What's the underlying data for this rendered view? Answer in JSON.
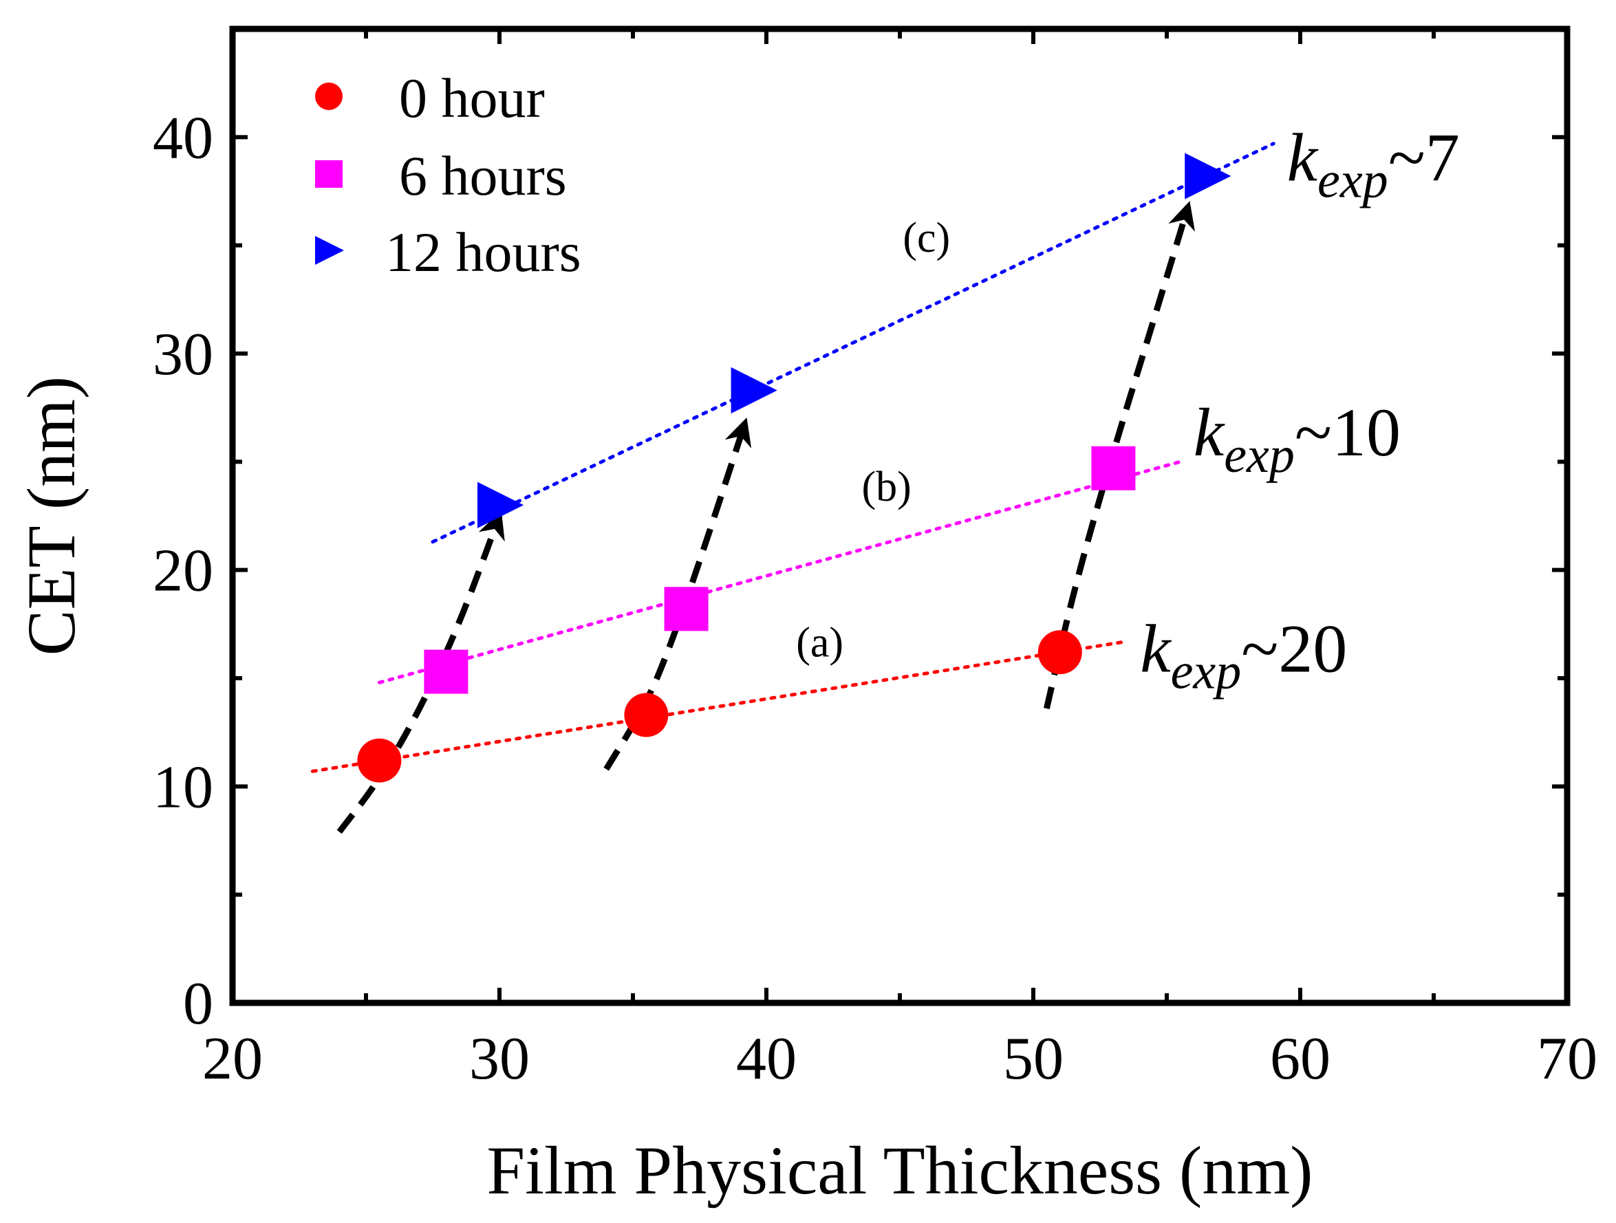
{
  "chart_data": {
    "type": "scatter",
    "xlabel": "Film Physical Thickness (nm)",
    "ylabel": "CET (nm)",
    "xlim": [
      20,
      70
    ],
    "ylim": [
      0,
      45
    ],
    "x_ticks": [
      20,
      30,
      40,
      50,
      60,
      70
    ],
    "y_ticks": [
      0,
      10,
      20,
      30,
      40
    ],
    "grid": false,
    "legend": {
      "position": "top-left",
      "entries": [
        {
          "label": "0 hour",
          "marker": "circle",
          "color": "#ff0000"
        },
        {
          "label": "6 hours",
          "marker": "square",
          "color": "#ff00ff"
        },
        {
          "label": "12 hours",
          "marker": "triangle-right",
          "color": "#0000ff"
        }
      ]
    },
    "series": [
      {
        "name": "0 hour",
        "marker": "circle",
        "color": "#ff0000",
        "points": [
          {
            "x": 25.5,
            "y": 11.2
          },
          {
            "x": 35.5,
            "y": 13.3
          },
          {
            "x": 51.0,
            "y": 16.2
          }
        ]
      },
      {
        "name": "6 hours",
        "marker": "square",
        "color": "#ff00ff",
        "points": [
          {
            "x": 28.0,
            "y": 15.3
          },
          {
            "x": 37.0,
            "y": 18.2
          },
          {
            "x": 53.0,
            "y": 24.7
          }
        ]
      },
      {
        "name": "12 hours",
        "marker": "triangle-right",
        "color": "#0000ff",
        "points": [
          {
            "x": 30.0,
            "y": 23.0
          },
          {
            "x": 39.5,
            "y": 28.3
          },
          {
            "x": 56.5,
            "y": 38.2
          }
        ]
      }
    ],
    "fit_lines": [
      {
        "name": "(a)",
        "color": "#ff0000",
        "from": {
          "x": 23.0,
          "y": 10.7
        },
        "to": {
          "x": 53.5,
          "y": 16.7
        }
      },
      {
        "name": "(b)",
        "color": "#ff00ff",
        "from": {
          "x": 25.5,
          "y": 14.8
        },
        "to": {
          "x": 55.5,
          "y": 25.0
        }
      },
      {
        "name": "(c)",
        "color": "#0000ff",
        "from": {
          "x": 27.5,
          "y": 21.3
        },
        "to": {
          "x": 59.0,
          "y": 39.7
        }
      }
    ],
    "arrows": [
      {
        "points": [
          {
            "x": 24.0,
            "y": 7.9
          },
          {
            "x": 25.5,
            "y": 10.3
          },
          {
            "x": 27.0,
            "y": 13.5
          },
          {
            "x": 28.5,
            "y": 17.5
          },
          {
            "x": 30.0,
            "y": 22.5
          }
        ]
      },
      {
        "points": [
          {
            "x": 34.0,
            "y": 10.8
          },
          {
            "x": 35.5,
            "y": 13.8
          },
          {
            "x": 36.5,
            "y": 16.8
          },
          {
            "x": 37.8,
            "y": 21.5
          },
          {
            "x": 39.2,
            "y": 26.8
          }
        ]
      },
      {
        "points": [
          {
            "x": 50.5,
            "y": 13.6
          },
          {
            "x": 51.5,
            "y": 19.0
          },
          {
            "x": 53.0,
            "y": 25.5
          },
          {
            "x": 54.5,
            "y": 31.5
          },
          {
            "x": 55.8,
            "y": 36.8
          }
        ]
      }
    ],
    "annotations": [
      {
        "text": "(a)",
        "x": 42.0,
        "y": 16.0
      },
      {
        "text": "(b)",
        "x": 44.5,
        "y": 23.2
      },
      {
        "text": "(c)",
        "x": 46.0,
        "y": 34.7
      }
    ],
    "k_labels": [
      {
        "prefix": "k",
        "subscript": "exp",
        "suffix": "~7",
        "x": 59.5,
        "y": 38.0
      },
      {
        "prefix": "k",
        "subscript": "exp",
        "suffix": "~10",
        "x": 56.0,
        "y": 25.3
      },
      {
        "prefix": "k",
        "subscript": "exp",
        "suffix": "~20",
        "x": 54.0,
        "y": 15.3
      }
    ]
  }
}
